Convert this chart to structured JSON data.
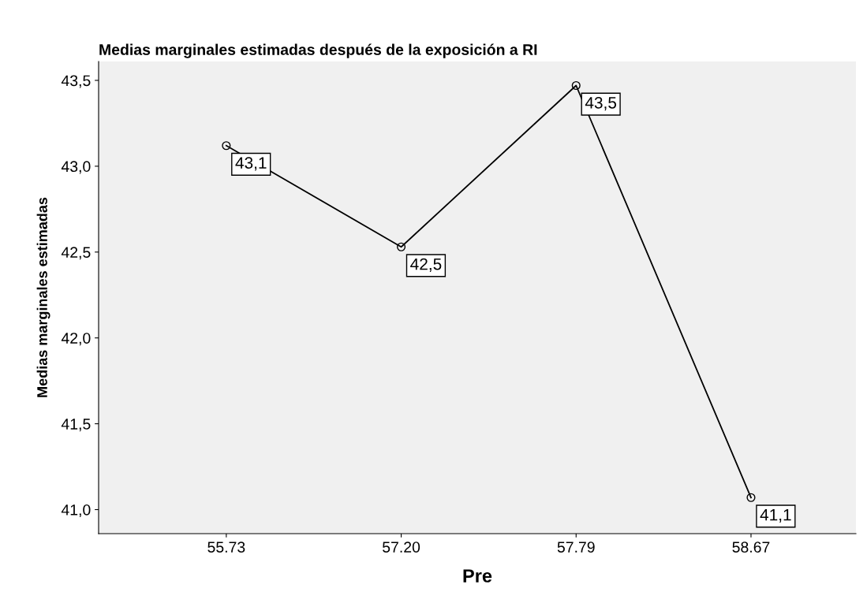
{
  "chart_data": {
    "type": "line",
    "title": "Medias marginales estimadas después de la exposición a RI",
    "xlabel": "Pre",
    "ylabel": "Medias marginales estimadas",
    "categories": [
      "55.73",
      "57.20",
      "57.79",
      "58.67"
    ],
    "series": [
      {
        "color": "#000000",
        "values": [
          43.12,
          42.53,
          43.47,
          41.07
        ],
        "value_labels": [
          "43,1",
          "42,5",
          "43,5",
          "41,1"
        ]
      }
    ],
    "ylim": [
      40.86,
      43.61
    ],
    "yticks": [
      {
        "value": 41.0,
        "label": "41,0"
      },
      {
        "value": 41.5,
        "label": "41,5"
      },
      {
        "value": 42.0,
        "label": "42,0"
      },
      {
        "value": 42.5,
        "label": "42,5"
      },
      {
        "value": 43.0,
        "label": "43,0"
      },
      {
        "value": 43.5,
        "label": "43,5"
      }
    ],
    "marker": "circle",
    "line_style": "solid",
    "grid": false,
    "legend": false
  }
}
